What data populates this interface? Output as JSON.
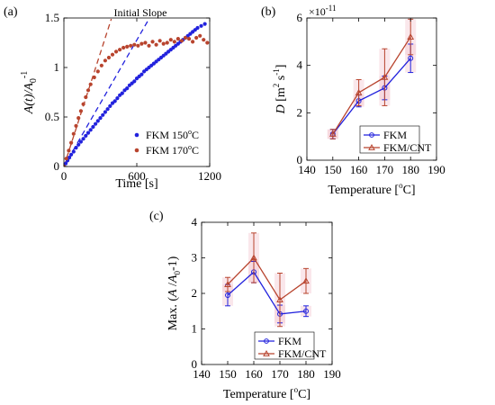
{
  "chart_data": [
    {
      "panel": "(a)",
      "type": "scatter",
      "annotation": "Initial Slope",
      "xlabel": "Time [s]",
      "ylabel_parts": [
        "A(t)/A",
        "0",
        "-1"
      ],
      "xlim": [
        0,
        1200
      ],
      "ylim": [
        0,
        1.5
      ],
      "xticks": [
        "0",
        "600",
        "1200"
      ],
      "yticks": [
        "0",
        "0.5",
        "1",
        "1.5"
      ],
      "legend_position": "bottom-right",
      "grid": false,
      "colors": {
        "fkm150": "#2222dd",
        "fkm170": "#b8442e"
      },
      "series": [
        {
          "name": "FKM 150",
          "name_sup": "o",
          "name_tail": "C",
          "color": "#2222dd",
          "points": [
            [
              0,
              0
            ],
            [
              15,
              0.03
            ],
            [
              30,
              0.06
            ],
            [
              45,
              0.09
            ],
            [
              60,
              0.12
            ],
            [
              80,
              0.15
            ],
            [
              100,
              0.19
            ],
            [
              120,
              0.22
            ],
            [
              140,
              0.25
            ],
            [
              160,
              0.28
            ],
            [
              180,
              0.31
            ],
            [
              200,
              0.34
            ],
            [
              220,
              0.37
            ],
            [
              240,
              0.4
            ],
            [
              260,
              0.43
            ],
            [
              280,
              0.46
            ],
            [
              300,
              0.49
            ],
            [
              320,
              0.52
            ],
            [
              340,
              0.55
            ],
            [
              360,
              0.58
            ],
            [
              380,
              0.61
            ],
            [
              400,
              0.64
            ],
            [
              420,
              0.66
            ],
            [
              440,
              0.69
            ],
            [
              460,
              0.72
            ],
            [
              480,
              0.74
            ],
            [
              500,
              0.77
            ],
            [
              520,
              0.79
            ],
            [
              540,
              0.82
            ],
            [
              560,
              0.84
            ],
            [
              580,
              0.86
            ],
            [
              600,
              0.89
            ],
            [
              620,
              0.91
            ],
            [
              640,
              0.93
            ],
            [
              660,
              0.96
            ],
            [
              680,
              0.98
            ],
            [
              700,
              1.0
            ],
            [
              720,
              1.02
            ],
            [
              740,
              1.04
            ],
            [
              760,
              1.06
            ],
            [
              780,
              1.08
            ],
            [
              800,
              1.1
            ],
            [
              820,
              1.12
            ],
            [
              840,
              1.14
            ],
            [
              860,
              1.16
            ],
            [
              880,
              1.18
            ],
            [
              900,
              1.2
            ],
            [
              920,
              1.22
            ],
            [
              940,
              1.24
            ],
            [
              960,
              1.26
            ],
            [
              980,
              1.28
            ],
            [
              1000,
              1.3
            ],
            [
              1020,
              1.32
            ],
            [
              1040,
              1.34
            ],
            [
              1060,
              1.36
            ],
            [
              1080,
              1.38
            ],
            [
              1100,
              1.4
            ],
            [
              1130,
              1.42
            ],
            [
              1160,
              1.44
            ]
          ],
          "initial_slope_line": [
            [
              0,
              0
            ],
            [
              700,
              1.49
            ]
          ]
        },
        {
          "name": "FKM 170",
          "name_sup": "o",
          "name_tail": "C",
          "color": "#b8442e",
          "points": [
            [
              0,
              0
            ],
            [
              20,
              0.08
            ],
            [
              40,
              0.16
            ],
            [
              60,
              0.24
            ],
            [
              80,
              0.33
            ],
            [
              100,
              0.41
            ],
            [
              120,
              0.49
            ],
            [
              140,
              0.56
            ],
            [
              160,
              0.63
            ],
            [
              180,
              0.7
            ],
            [
              200,
              0.77
            ],
            [
              220,
              0.83
            ],
            [
              250,
              0.9
            ],
            [
              280,
              0.96
            ],
            [
              310,
              1.02
            ],
            [
              340,
              1.07
            ],
            [
              370,
              1.1
            ],
            [
              400,
              1.13
            ],
            [
              430,
              1.16
            ],
            [
              460,
              1.18
            ],
            [
              490,
              1.2
            ],
            [
              520,
              1.21
            ],
            [
              550,
              1.22
            ],
            [
              580,
              1.23
            ],
            [
              610,
              1.22
            ],
            [
              640,
              1.24
            ],
            [
              670,
              1.25
            ],
            [
              700,
              1.22
            ],
            [
              730,
              1.26
            ],
            [
              760,
              1.23
            ],
            [
              790,
              1.27
            ],
            [
              820,
              1.24
            ],
            [
              850,
              1.25
            ],
            [
              880,
              1.28
            ],
            [
              910,
              1.26
            ],
            [
              940,
              1.29
            ],
            [
              970,
              1.27
            ],
            [
              1000,
              1.3
            ],
            [
              1030,
              1.29
            ],
            [
              1060,
              1.26
            ],
            [
              1090,
              1.3
            ],
            [
              1120,
              1.32
            ],
            [
              1150,
              1.28
            ],
            [
              1180,
              1.25
            ]
          ],
          "initial_slope_line": [
            [
              0,
              0
            ],
            [
              390,
              1.49
            ]
          ]
        }
      ]
    },
    {
      "panel": "(b)",
      "type": "line",
      "xlabel": "Temperature [",
      "xlabel_sup": "o",
      "xlabel_tail": "C]",
      "ylabel_parts": [
        "D [m",
        "2",
        " s",
        "-1",
        "]"
      ],
      "y_exponent": "-11",
      "y_exponent_base": "×10",
      "xlim": [
        140,
        190
      ],
      "ylim": [
        0,
        6
      ],
      "xticks": [
        "140",
        "150",
        "160",
        "170",
        "180",
        "190"
      ],
      "yticks": [
        "0",
        "2",
        "4",
        "6"
      ],
      "legend_position": "bottom-right",
      "grid": false,
      "colors": {
        "fkm": "#2222dd",
        "fkmcnt": "#b8442e"
      },
      "x": [
        150,
        160,
        170,
        180
      ],
      "series": [
        {
          "name": "FKM",
          "marker": "circle",
          "color": "#2222dd",
          "values": [
            1.1,
            2.5,
            3.05,
            4.3
          ],
          "errors": [
            0.2,
            0.25,
            0.5,
            0.6
          ]
        },
        {
          "name": "FKM/CNT",
          "marker": "triangle",
          "color": "#b8442e",
          "values": [
            1.1,
            2.85,
            3.5,
            5.2
          ],
          "errors": [
            0.2,
            0.55,
            1.2,
            0.75
          ]
        }
      ]
    },
    {
      "panel": "(c)",
      "type": "line",
      "xlabel": "Temperature [",
      "xlabel_sup": "o",
      "xlabel_tail": "C]",
      "ylabel_parts": [
        "Max. (A /A",
        "0",
        "-1)"
      ],
      "xlim": [
        140,
        190
      ],
      "ylim": [
        0,
        4
      ],
      "xticks": [
        "140",
        "150",
        "160",
        "170",
        "180",
        "190"
      ],
      "yticks": [
        "0",
        "1",
        "2",
        "3",
        "4"
      ],
      "legend_position": "bottom-right",
      "grid": false,
      "colors": {
        "fkm": "#2222dd",
        "fkmcnt": "#b8442e"
      },
      "x": [
        150,
        160,
        170,
        180
      ],
      "series": [
        {
          "name": "FKM",
          "marker": "circle",
          "color": "#2222dd",
          "values": [
            1.95,
            2.6,
            1.42,
            1.5
          ],
          "errors": [
            0.3,
            0.3,
            0.25,
            0.15
          ]
        },
        {
          "name": "FKM/CNT",
          "marker": "triangle",
          "color": "#b8442e",
          "values": [
            2.25,
            3.0,
            1.82,
            2.35
          ],
          "errors": [
            0.2,
            0.7,
            0.75,
            0.35
          ]
        }
      ]
    }
  ]
}
